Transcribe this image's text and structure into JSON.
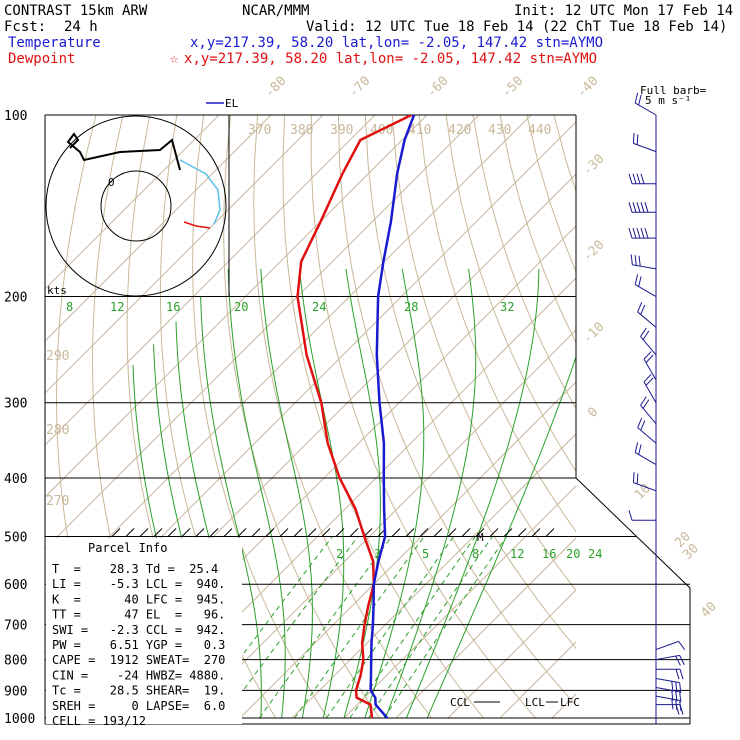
{
  "header": {
    "model": "CONTRAST 15km ARW",
    "source": "NCAR/MMM",
    "init": "Init: 12 UTC Mon 17 Feb 14",
    "fcst_label": "Fcst:",
    "fcst_value": "24 h",
    "valid": "Valid: 12 UTC Tue 18 Feb 14 (22 ChT Tue 18 Feb 14)",
    "temperature_label": "Temperature",
    "temperature_info": "x,y=217.39, 58.20   lat,lon= -2.05, 147.42  stn=AYMO",
    "dewpoint_label": "Dewpoint",
    "dewpoint_marker": "☆",
    "dewpoint_info": "x,y=217.39, 58.20   lat,lon= -2.05, 147.42  stn=AYMO"
  },
  "colors": {
    "temperature": "#1a1ad0",
    "dewpoint": "#e01010",
    "isotherm": "#c9b89a",
    "mixing_ratio": "#2aa02a",
    "wind_barb": "#1a1a90",
    "hodograph_track": "#000000",
    "hodograph_light": "#5bc0eb"
  },
  "wind_legend": {
    "title": "Full barb=",
    "value": "5 m s⁻¹"
  },
  "hodograph": {
    "kts_label": "kts",
    "ring_label": "0"
  },
  "el_marker": "EL",
  "m_marker": "M",
  "ccl_marker": "CCL",
  "lcl_marker": "LCL",
  "lfc_marker": "LFC",
  "parcel_info": {
    "title": "Parcel Info",
    "rows": [
      "T  =    28.3 Td =  25.4",
      "LI =    -5.3 LCL =  940.",
      "K  =      40 LFC =  945.",
      "TT =      47 EL  =   96.",
      "SWI =   -2.3 CCL =  942.",
      "PW =    6.51 YGP =   0.3",
      "CAPE =  1912 SWEAT=  270",
      "CIN =    -24 HWBZ= 4880.",
      "Tc =    28.5 SHEAR=  19.",
      "SREH =     0 LAPSE=  6.0",
      "CELL = 193/12"
    ]
  },
  "chart_data": {
    "type": "line",
    "diagram": "Skew-T log-P",
    "yscale": "log",
    "yaxis_pressure_labels": [
      "100",
      "200",
      "300",
      "400",
      "500",
      "600",
      "700",
      "800",
      "900",
      "1000"
    ],
    "isotherm_labels": [
      "-80",
      "-70",
      "-60",
      "-50",
      "-40",
      "-30",
      "-20",
      "-10",
      "0",
      "10",
      "20",
      "30",
      "40"
    ],
    "theta_labels": [
      "370",
      "380",
      "390",
      "400",
      "410",
      "420",
      "430",
      "440",
      "290",
      "280",
      "270"
    ],
    "mixing_ratio_labels_upper": [
      "8",
      "12",
      "16",
      "20",
      "24",
      "28",
      "32"
    ],
    "mixing_ratio_labels_lower": [
      "2",
      "3",
      "5",
      "8",
      "12",
      "16",
      "20",
      "24"
    ],
    "series": [
      {
        "name": "Temperature",
        "pressure": [
          1000,
          950,
          925,
          900,
          850,
          800,
          750,
          700,
          650,
          600,
          550,
          500,
          450,
          400,
          350,
          300,
          250,
          200,
          175,
          150,
          125,
          110,
          100
        ],
        "temperature_C": [
          28.3,
          23.5,
          22.1,
          19.8,
          17.0,
          14.0,
          10.8,
          7.6,
          4.0,
          0.0,
          -3.5,
          -7.0,
          -12.5,
          -18.5,
          -25.2,
          -33.8,
          -43.5,
          -54.5,
          -60.2,
          -66.5,
          -74.5,
          -79.5,
          -82.5
        ]
      },
      {
        "name": "Dewpoint",
        "pressure": [
          1000,
          950,
          925,
          900,
          850,
          800,
          750,
          700,
          650,
          600,
          550,
          500,
          450,
          400,
          350,
          300,
          250,
          200,
          175,
          150,
          125,
          110,
          100
        ],
        "dewpoint_C": [
          25.4,
          22.5,
          18.5,
          17.0,
          15.0,
          12.5,
          9.0,
          6.0,
          3.0,
          0.0,
          -4.5,
          -11.0,
          -18.0,
          -27.0,
          -36.0,
          -45.0,
          -57.0,
          -70.0,
          -76.0,
          -80.0,
          -85.0,
          -88.0,
          -83.0
        ]
      }
    ],
    "wind_barbs": {
      "pressure": [
        100,
        115,
        130,
        145,
        160,
        180,
        200,
        225,
        250,
        275,
        300,
        325,
        350,
        380,
        420,
        470,
        770,
        800,
        830,
        860,
        890,
        920,
        950
      ],
      "speed_ms": [
        10,
        10,
        20,
        25,
        25,
        15,
        10,
        10,
        10,
        10,
        10,
        10,
        10,
        10,
        10,
        5,
        5,
        10,
        10,
        15,
        15,
        15,
        10
      ],
      "dir_deg": [
        300,
        290,
        270,
        270,
        270,
        280,
        300,
        310,
        320,
        330,
        330,
        320,
        310,
        300,
        290,
        270,
        70,
        80,
        90,
        100,
        100,
        100,
        90
      ]
    },
    "xlim_C": [
      -45,
      50
    ],
    "ylim_hPa": [
      1000,
      100
    ],
    "legend": "top-left"
  }
}
